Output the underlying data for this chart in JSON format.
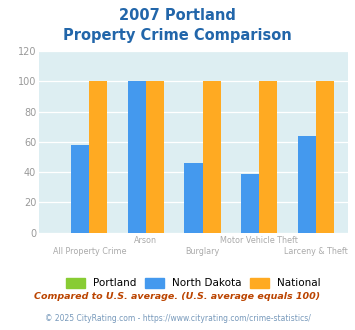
{
  "title_line1": "2007 Portland",
  "title_line2": "Property Crime Comparison",
  "categories": [
    "All Property Crime",
    "Arson",
    "Burglary",
    "Motor Vehicle Theft",
    "Larceny & Theft"
  ],
  "portland_values": [
    0,
    0,
    0,
    0,
    0
  ],
  "north_dakota_values": [
    58,
    100,
    46,
    39,
    64
  ],
  "national_values": [
    100,
    100,
    100,
    100,
    100
  ],
  "portland_color": "#88cc33",
  "north_dakota_color": "#4499ee",
  "national_color": "#ffaa22",
  "title_color": "#2266aa",
  "tick_color": "#999999",
  "grid_color": "#ccdddd",
  "plot_bg": "#ddeef2",
  "ylim": [
    0,
    120
  ],
  "yticks": [
    0,
    20,
    40,
    60,
    80,
    100,
    120
  ],
  "bar_width": 0.32,
  "footnote1": "Compared to U.S. average. (U.S. average equals 100)",
  "footnote2": "© 2025 CityRating.com - https://www.cityrating.com/crime-statistics/",
  "footnote1_color": "#bb4400",
  "footnote2_color": "#7799bb",
  "legend_labels": [
    "Portland",
    "North Dakota",
    "National"
  ],
  "xlabel_colors": [
    "#aaaaaa",
    "#aaaaaa",
    "#aaaaaa",
    "#aaaaaa",
    "#aaaaaa"
  ]
}
